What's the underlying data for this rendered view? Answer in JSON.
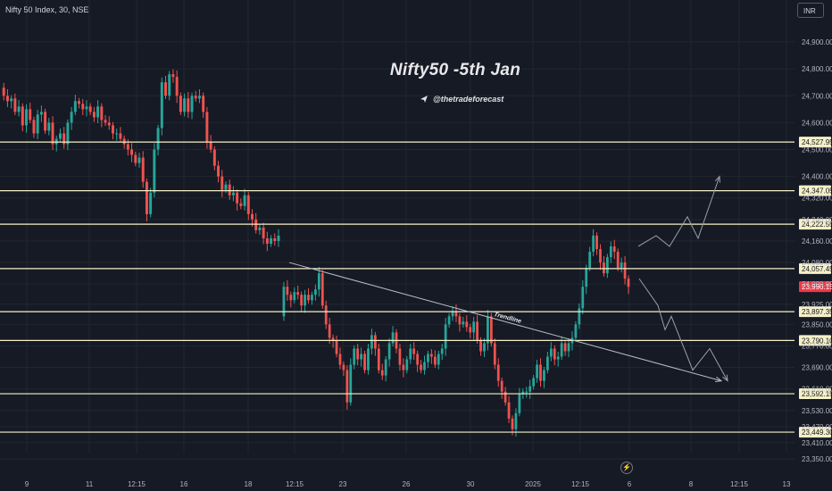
{
  "header": {
    "symbol": "Nifty 50 Index, 30, NSE",
    "currency": "INR"
  },
  "annotations": {
    "title": "Nifty50 -5th Jan",
    "handle": "@thetradeforecast",
    "trendline_label": "Trendline"
  },
  "chart_data": {
    "type": "candlestick",
    "yaxis": {
      "range": [
        23310,
        24980
      ],
      "ticks": [
        "24,900.00",
        "24,800.00",
        "24,700.00",
        "24,600.00",
        "24,500.00",
        "24,400.00",
        "24,320.00",
        "24,240.00",
        "24,160.00",
        "24,080.00",
        "24,000.00",
        "23,925.00",
        "23,850.00",
        "23,770.00",
        "23,690.00",
        "23,610.00",
        "23,530.00",
        "23,470.00",
        "23,410.00",
        "23,350.00"
      ]
    },
    "xaxis": {
      "ticks": [
        "9",
        "11",
        "12:15",
        "16",
        "18",
        "12:15",
        "23",
        "26",
        "30",
        "2025",
        "12:15",
        "6",
        "8",
        "12:15",
        "13"
      ]
    },
    "levels": [
      {
        "label": "24,527.95",
        "color": "#f5f0c8"
      },
      {
        "label": "24,347.05",
        "color": "#f5f0c8"
      },
      {
        "label": "24,222.55",
        "color": "#f5f0c8"
      },
      {
        "label": "24,057.45",
        "color": "#f5f0c8"
      },
      {
        "label": "23,897.35",
        "color": "#f5f0c8"
      },
      {
        "label": "23,790.10",
        "color": "#f5f0c8"
      },
      {
        "label": "23,592.15",
        "color": "#f5f0c8"
      },
      {
        "label": "23,449.30",
        "color": "#f5f0c8"
      }
    ],
    "last_price": {
      "label": "23,990.15",
      "color": "#f23645"
    },
    "colors": {
      "up": "#26a69a",
      "down": "#ef5350",
      "background": "#161a25",
      "grid": "#22262f"
    },
    "segments": [
      {
        "points": [
          24730,
          24700,
          24680,
          24690,
          24640,
          24660,
          24590,
          24650,
          24610,
          24560,
          24630,
          24640,
          24570,
          24600,
          24520,
          24540,
          24560,
          24520,
          24600,
          24640,
          24680,
          24670,
          24650,
          24660,
          24640,
          24620,
          24660,
          24610,
          24600,
          24590,
          24560,
          24560,
          24540,
          24520,
          24500,
          24480,
          24450,
          24470,
          24380,
          24260,
          24340,
          24500,
          24580,
          24750,
          24700,
          24780,
          24770,
          24700,
          24640,
          24690,
          24640,
          24700,
          24690,
          24700,
          24640,
          24530,
          24500,
          24440,
          24400,
          24350,
          24370,
          24330,
          24340,
          24300,
          24290,
          24330,
          24260,
          24240,
          24200,
          24210,
          24170,
          24150,
          24170,
          24160,
          24180
        ]
      },
      {
        "points": [
          23880,
          23990,
          23960,
          23940,
          23970,
          23960,
          23920,
          23960,
          23940,
          23960,
          23980,
          24040,
          23920,
          23850,
          23800,
          23790,
          23740,
          23700,
          23680,
          23560,
          23700,
          23760,
          23720,
          23740,
          23680,
          23760,
          23810,
          23760,
          23680,
          23660,
          23720,
          23780,
          23820,
          23760,
          23700,
          23680,
          23720,
          23760,
          23740,
          23700,
          23680,
          23710,
          23740,
          23730,
          23700,
          23740,
          23760,
          23850,
          23880,
          23900,
          23880,
          23850,
          23860,
          23840,
          23820,
          23860,
          23790,
          23750,
          23780,
          23880,
          23780,
          23700,
          23640,
          23600,
          23560,
          23500,
          23460,
          23520,
          23590,
          23600,
          23600,
          23620,
          23650,
          23700,
          23640,
          23680,
          23730,
          23760,
          23720,
          23730,
          23780,
          23750,
          23780,
          23800,
          23850,
          23910,
          23990,
          24060,
          24120,
          24180,
          24130,
          24080,
          24040,
          24100,
          24140,
          24120,
          24060,
          24080,
          24020,
          23990
        ]
      }
    ],
    "projections": {
      "up": [
        24140,
        24180,
        24140,
        24250,
        24170,
        24400
      ],
      "down": [
        24020,
        23920,
        23830,
        23880,
        23680,
        23760,
        23640
      ]
    },
    "trendline": {
      "start": 24080,
      "end": 23640
    }
  }
}
